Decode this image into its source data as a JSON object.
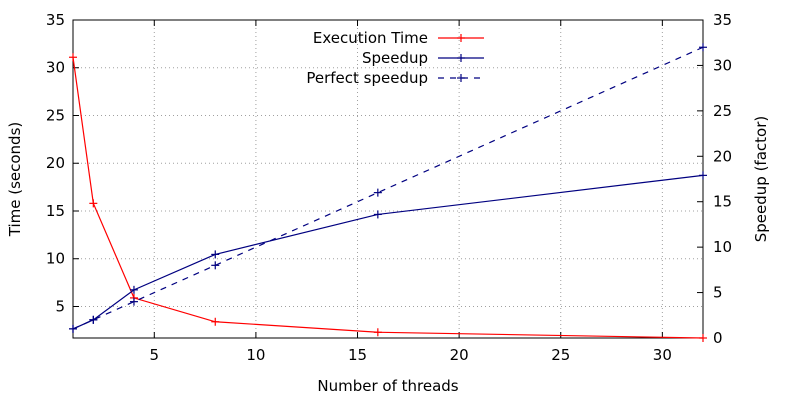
{
  "chart_data": {
    "type": "line",
    "xlabel": "Number of threads",
    "ylabel_left": "Time (seconds)",
    "ylabel_right": "Speedup (factor)",
    "xlim": [
      1,
      32
    ],
    "ylim_left": [
      1.7,
      35
    ],
    "ylim_right": [
      0,
      35
    ],
    "xticks": [
      5,
      10,
      15,
      20,
      25,
      30
    ],
    "yticks_left": [
      5,
      10,
      15,
      20,
      25,
      30,
      35
    ],
    "yticks_right": [
      0,
      5,
      10,
      15,
      20,
      25,
      30,
      35
    ],
    "grid": true,
    "legend_position": "top-center",
    "series": [
      {
        "name": "Execution Time",
        "axis": "left",
        "style": "solid",
        "color": "#ff0000",
        "x": [
          1,
          2,
          4,
          8,
          16,
          32
        ],
        "y": [
          31.1,
          15.8,
          5.9,
          3.4,
          2.3,
          1.7
        ]
      },
      {
        "name": "Speedup",
        "axis": "right",
        "style": "solid",
        "color": "#000080",
        "x": [
          1,
          2,
          4,
          8,
          16,
          32
        ],
        "y": [
          1.0,
          2.0,
          5.3,
          9.2,
          13.6,
          17.9
        ]
      },
      {
        "name": "Perfect speedup",
        "axis": "right",
        "style": "dashed",
        "color": "#000080",
        "x": [
          1,
          2,
          4,
          8,
          16,
          32
        ],
        "y": [
          1,
          2,
          4,
          8,
          16,
          32
        ]
      }
    ]
  }
}
